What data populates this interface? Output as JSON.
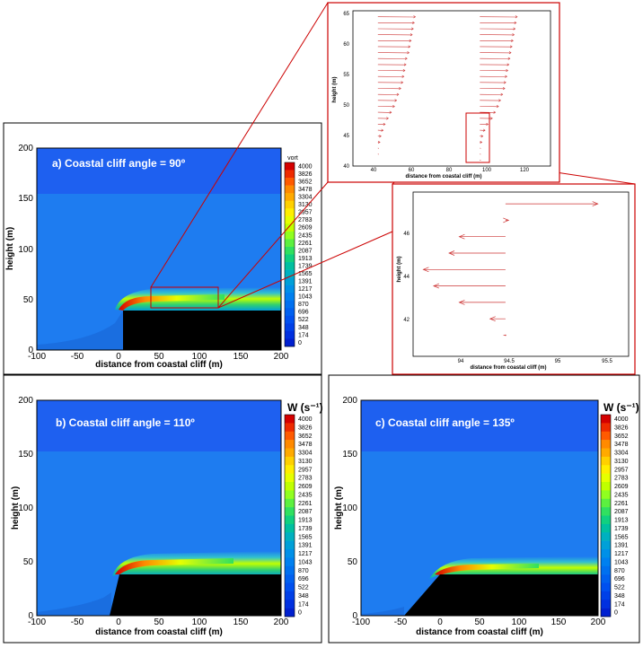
{
  "colorbar_levels": [
    "4000",
    "3826",
    "3652",
    "3478",
    "3304",
    "3130",
    "2957",
    "2783",
    "2609",
    "2435",
    "2261",
    "2087",
    "1913",
    "1739",
    "1565",
    "1391",
    "1217",
    "1043",
    "870",
    "696",
    "522",
    "348",
    "174",
    "0"
  ],
  "colorbar_colors": [
    "#d40000",
    "#ee2a00",
    "#ff5a00",
    "#ff8a00",
    "#ffaa00",
    "#ffd000",
    "#ffee00",
    "#e6ff00",
    "#c0ff00",
    "#90ff20",
    "#5cf040",
    "#30e060",
    "#10d080",
    "#00c0a0",
    "#00b0c0",
    "#00a0d8",
    "#0090e8",
    "#0080f0",
    "#0070f0",
    "#0060f0",
    "#0050f0",
    "#0040e8",
    "#0030e0",
    "#0020d0"
  ],
  "panels": {
    "a": {
      "title": "a) Coastal cliff angle = 90º",
      "colorbar_title": "vort"
    },
    "b": {
      "title": "b) Coastal cliff angle = 110º",
      "colorbar_title": "W (s⁻¹)"
    },
    "c": {
      "title": "c) Coastal cliff angle = 135º",
      "colorbar_title": "W (s⁻¹)"
    }
  },
  "axes_main": {
    "xlabel": "distance from coastal cliff (m)",
    "ylabel": "height (m)",
    "xticks": [
      "-100",
      "-50",
      "0",
      "50",
      "100",
      "150",
      "200"
    ],
    "yticks": [
      "0",
      "50",
      "100",
      "150",
      "200"
    ]
  },
  "inset1": {
    "xlabel": "distance from coastal cliff (m)",
    "ylabel": "height (m)",
    "xticks": [
      "40",
      "60",
      "80",
      "100",
      "120"
    ],
    "yticks": [
      "40",
      "45",
      "50",
      "55",
      "60",
      "65"
    ]
  },
  "inset2": {
    "xlabel": "distance from coastal cliff (m)",
    "ylabel": "height (m)",
    "xticks": [
      "94",
      "94.5",
      "95",
      "95.5"
    ],
    "yticks": [
      "42",
      "44",
      "46"
    ]
  },
  "chart_data": [
    {
      "type": "heatmap",
      "title": "a) Coastal cliff angle = 90º",
      "xlabel": "distance from coastal cliff (m)",
      "ylabel": "height (m)",
      "xlim": [
        -100,
        200
      ],
      "ylim": [
        0,
        200
      ],
      "colorbar": {
        "title": "vort",
        "range": [
          0,
          4000
        ]
      },
      "cliff_angle_deg": 90,
      "cliff_height_m": 40
    },
    {
      "type": "heatmap",
      "title": "b) Coastal cliff angle = 110º",
      "xlabel": "distance from coastal cliff (m)",
      "ylabel": "height (m)",
      "xlim": [
        -100,
        200
      ],
      "ylim": [
        0,
        200
      ],
      "colorbar": {
        "title": "W (s⁻¹)",
        "range": [
          0,
          4000
        ]
      },
      "cliff_angle_deg": 110,
      "cliff_height_m": 40
    },
    {
      "type": "heatmap",
      "title": "c) Coastal cliff angle = 135º",
      "xlabel": "distance from coastal cliff (m)",
      "ylabel": "height (m)",
      "xlim": [
        -100,
        200
      ],
      "ylim": [
        0,
        200
      ],
      "colorbar": {
        "title": "W (s⁻¹)",
        "range": [
          0,
          4000
        ]
      },
      "cliff_angle_deg": 135,
      "cliff_height_m": 40
    },
    {
      "type": "scatter",
      "subtype": "vector-field",
      "xlabel": "distance from coastal cliff (m)",
      "ylabel": "height (m)",
      "xlim": [
        35,
        130
      ],
      "ylim": [
        40,
        66
      ],
      "series": [
        {
          "x": 47,
          "heights": [
            65,
            64,
            63,
            62,
            61,
            60,
            59,
            58,
            57,
            56,
            55,
            54,
            53,
            52,
            51,
            50,
            49,
            48,
            47,
            46,
            45,
            44,
            43,
            42
          ],
          "lengths": [
            18,
            17.5,
            17,
            16.5,
            16,
            15.5,
            15,
            14,
            13.5,
            13,
            12.5,
            12,
            11,
            10,
            9,
            8,
            6.5,
            5,
            3.5,
            2.5,
            1.5,
            1,
            0.5,
            0.5
          ]
        },
        {
          "x": 96,
          "heights": [
            65,
            64,
            63,
            62,
            61,
            60,
            59,
            58,
            57,
            56,
            55,
            54,
            53,
            52,
            51,
            50,
            49,
            48,
            47,
            46,
            45,
            44,
            43,
            42,
            41
          ],
          "lengths": [
            18,
            17.5,
            17,
            16.5,
            16,
            15.5,
            15,
            14.5,
            14,
            13.5,
            13,
            12.5,
            12,
            11,
            10,
            9,
            7.5,
            6,
            4,
            2.5,
            1.5,
            1,
            0.5,
            0.5,
            0.5
          ]
        }
      ]
    },
    {
      "type": "scatter",
      "subtype": "vector-field",
      "xlabel": "distance from coastal cliff (m)",
      "ylabel": "height (m)",
      "xlim": [
        93.7,
        95.8
      ],
      "ylim": [
        40.5,
        47.5
      ],
      "series": [
        {
          "x_base": 94.6,
          "heights": [
            47,
            46.3,
            45.6,
            44.9,
            44.2,
            43.5,
            42.8,
            42.1,
            41.4
          ],
          "dx": [
            0.9,
            0.03,
            -0.45,
            -0.55,
            -0.8,
            -0.7,
            -0.45,
            -0.15,
            -0.02
          ]
        }
      ]
    }
  ]
}
